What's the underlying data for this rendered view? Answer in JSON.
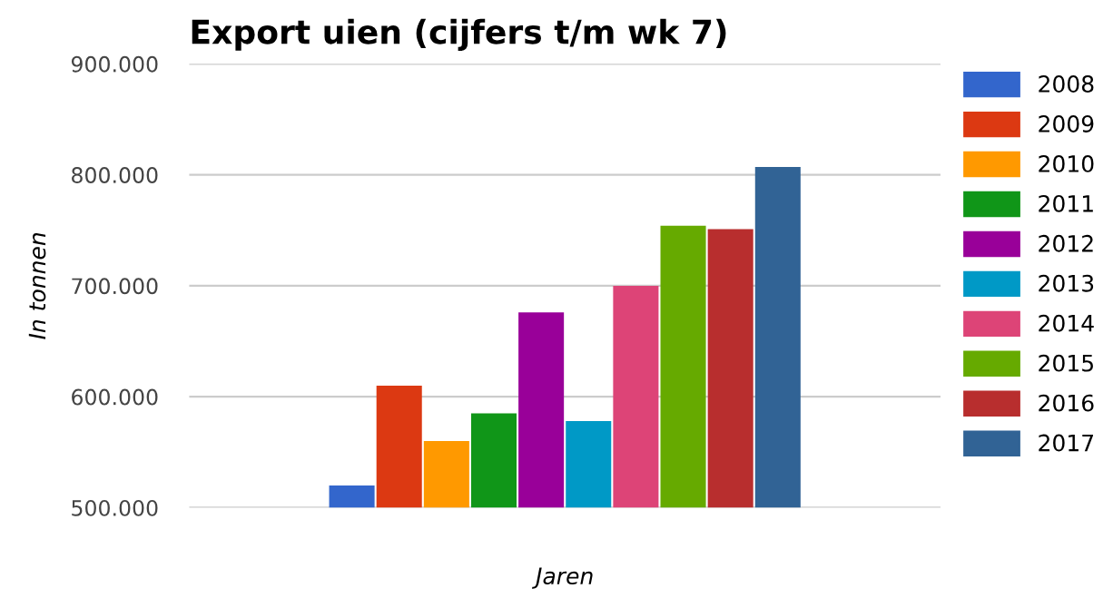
{
  "chart_data": {
    "type": "bar",
    "title": "Export uien (cijfers t/m wk 7)",
    "xlabel": "Jaren",
    "ylabel": "In tonnen",
    "categories": [
      null
    ],
    "series": [
      {
        "name": "2008",
        "color": "#3366cc",
        "values": [
          520000
        ]
      },
      {
        "name": "2009",
        "color": "#dc3912",
        "values": [
          610000
        ]
      },
      {
        "name": "2010",
        "color": "#ff9900",
        "values": [
          560000
        ]
      },
      {
        "name": "2011",
        "color": "#109618",
        "values": [
          585000
        ]
      },
      {
        "name": "2012",
        "color": "#990099",
        "values": [
          676000
        ]
      },
      {
        "name": "2013",
        "color": "#0099c6",
        "values": [
          578000
        ]
      },
      {
        "name": "2014",
        "color": "#dd4477",
        "values": [
          700000
        ]
      },
      {
        "name": "2015",
        "color": "#66aa00",
        "values": [
          754000
        ]
      },
      {
        "name": "2016",
        "color": "#b82e2e",
        "values": [
          751000
        ]
      },
      {
        "name": "2017",
        "color": "#316395",
        "values": [
          807000
        ]
      }
    ],
    "ylim": [
      500000,
      900000
    ],
    "yticks": [
      {
        "value": 500000,
        "label": "500.000"
      },
      {
        "value": 600000,
        "label": "600.000"
      },
      {
        "value": 700000,
        "label": "700.000"
      },
      {
        "value": 800000,
        "label": "800.000"
      },
      {
        "value": 900000,
        "label": "900.000"
      }
    ],
    "grid": "y",
    "legend": "right"
  }
}
